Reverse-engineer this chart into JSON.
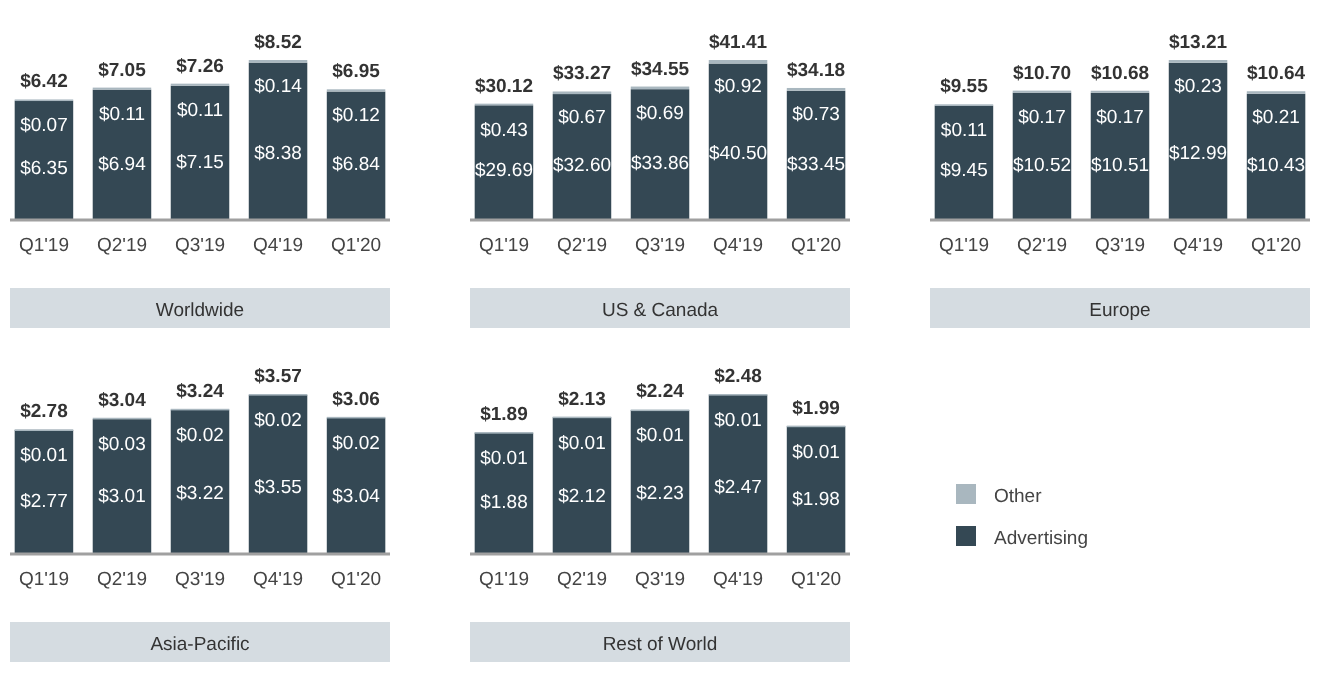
{
  "chart_data": [
    {
      "type": "bar",
      "title": "Worldwide",
      "categories": [
        "Q1'19",
        "Q2'19",
        "Q3'19",
        "Q4'19",
        "Q1'20"
      ],
      "stacked": true,
      "tick_labels": "x",
      "series": [
        {
          "color": "#344854",
          "values": [
            6.35,
            6.94,
            7.15,
            8.38,
            6.84
          ],
          "value_labels": [
            "$6.35",
            "$6.94",
            "$7.15",
            "$8.38",
            "$6.84"
          ]
        },
        {
          "color": "#a9b7bf",
          "values": [
            0.07,
            0.11,
            0.11,
            0.14,
            0.12
          ],
          "value_labels": [
            "$0.07",
            "$0.11",
            "$0.11",
            "$0.14",
            "$0.12"
          ]
        }
      ],
      "totals": [
        "$6.42",
        "$7.05",
        "$7.26",
        "$8.52",
        "$6.95"
      ]
    },
    {
      "type": "bar",
      "title": "US & Canada",
      "categories": [
        "Q1'19",
        "Q2'19",
        "Q3'19",
        "Q4'19",
        "Q1'20"
      ],
      "stacked": true,
      "tick_labels": "x",
      "series": [
        {
          "color": "#344854",
          "values": [
            29.69,
            32.6,
            33.86,
            40.5,
            33.45
          ],
          "value_labels": [
            "$29.69",
            "$32.60",
            "$33.86",
            "$40.50",
            "$33.45"
          ]
        },
        {
          "color": "#a9b7bf",
          "values": [
            0.43,
            0.67,
            0.69,
            0.92,
            0.73
          ],
          "value_labels": [
            "$0.43",
            "$0.67",
            "$0.69",
            "$0.92",
            "$0.73"
          ]
        }
      ],
      "totals": [
        "$30.12",
        "$33.27",
        "$34.55",
        "$41.41",
        "$34.18"
      ]
    },
    {
      "type": "bar",
      "title": "Europe",
      "categories": [
        "Q1'19",
        "Q2'19",
        "Q3'19",
        "Q4'19",
        "Q1'20"
      ],
      "stacked": true,
      "tick_labels": "x",
      "series": [
        {
          "color": "#344854",
          "values": [
            9.45,
            10.52,
            10.51,
            12.99,
            10.43
          ],
          "value_labels": [
            "$9.45",
            "$10.52",
            "$10.51",
            "$12.99",
            "$10.43"
          ]
        },
        {
          "color": "#a9b7bf",
          "values": [
            0.11,
            0.17,
            0.17,
            0.23,
            0.21
          ],
          "value_labels": [
            "$0.11",
            "$0.17",
            "$0.17",
            "$0.23",
            "$0.21"
          ]
        }
      ],
      "totals": [
        "$9.55",
        "$10.70",
        "$10.68",
        "$13.21",
        "$10.64"
      ]
    },
    {
      "type": "bar",
      "title": "Asia-Pacific",
      "categories": [
        "Q1'19",
        "Q2'19",
        "Q3'19",
        "Q4'19",
        "Q1'20"
      ],
      "stacked": true,
      "tick_labels": "x",
      "series": [
        {
          "color": "#344854",
          "values": [
            2.77,
            3.01,
            3.22,
            3.55,
            3.04
          ],
          "value_labels": [
            "$2.77",
            "$3.01",
            "$3.22",
            "$3.55",
            "$3.04"
          ]
        },
        {
          "color": "#a9b7bf",
          "values": [
            0.01,
            0.03,
            0.02,
            0.02,
            0.02
          ],
          "value_labels": [
            "$0.01",
            "$0.03",
            "$0.02",
            "$0.02",
            "$0.02"
          ]
        }
      ],
      "totals": [
        "$2.78",
        "$3.04",
        "$3.24",
        "$3.57",
        "$3.06"
      ]
    },
    {
      "type": "bar",
      "title": "Rest of World",
      "categories": [
        "Q1'19",
        "Q2'19",
        "Q3'19",
        "Q4'19",
        "Q1'20"
      ],
      "stacked": true,
      "tick_labels": "x",
      "legend": "right",
      "series": [
        {
          "name": "Advertising",
          "color": "#344854",
          "values": [
            1.88,
            2.12,
            2.23,
            2.47,
            1.98
          ],
          "value_labels": [
            "$1.88",
            "$2.12",
            "$2.23",
            "$2.47",
            "$1.98"
          ]
        },
        {
          "name": "Other",
          "color": "#a9b7bf",
          "values": [
            0.01,
            0.01,
            0.01,
            0.01,
            0.01
          ],
          "value_labels": [
            "$0.01",
            "$0.01",
            "$0.01",
            "$0.01",
            "$0.01"
          ]
        }
      ],
      "totals": [
        "$1.89",
        "$2.13",
        "$2.24",
        "$2.48",
        "$1.99"
      ]
    }
  ]
}
